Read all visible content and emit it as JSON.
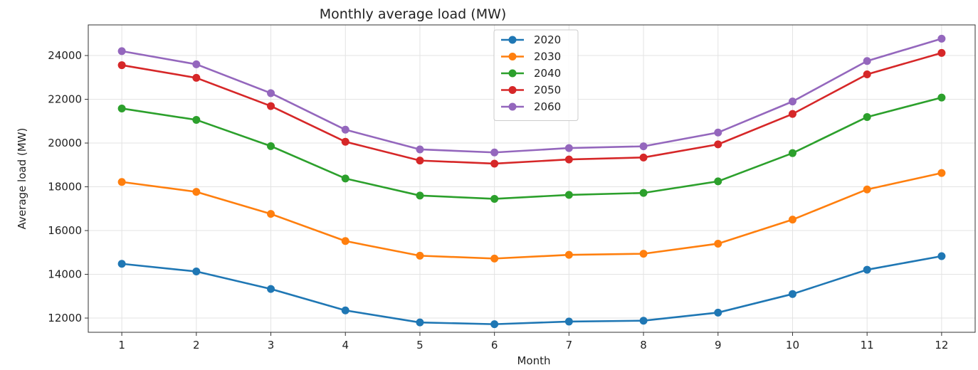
{
  "chart_data": {
    "type": "line",
    "title": "Monthly average load (MW)",
    "xlabel": "Month",
    "ylabel": "Average load (MW)",
    "x": [
      1,
      2,
      3,
      4,
      5,
      6,
      7,
      8,
      9,
      10,
      11,
      12
    ],
    "xticks": [
      "1",
      "2",
      "3",
      "4",
      "5",
      "6",
      "7",
      "8",
      "9",
      "10",
      "11",
      "12"
    ],
    "yticks": [
      12000,
      14000,
      16000,
      18000,
      20000,
      22000,
      24000
    ],
    "ytick_labels": [
      "12000",
      "14000",
      "16000",
      "18000",
      "20000",
      "22000",
      "24000"
    ],
    "xlim": [
      0.55,
      12.45
    ],
    "ylim": [
      11350,
      25400
    ],
    "grid": true,
    "legend_position": "top-center",
    "markers": true,
    "series": [
      {
        "name": "2020",
        "color": "#1f77b4",
        "values": [
          14480,
          14130,
          13330,
          12350,
          11800,
          11720,
          11840,
          11880,
          12250,
          13100,
          14210,
          14830
        ]
      },
      {
        "name": "2030",
        "color": "#ff7f0e",
        "values": [
          18220,
          17770,
          16760,
          15520,
          14850,
          14720,
          14890,
          14940,
          15400,
          16500,
          17880,
          18630
        ]
      },
      {
        "name": "2040",
        "color": "#2ca02c",
        "values": [
          21580,
          21060,
          19860,
          18380,
          17600,
          17450,
          17630,
          17720,
          18250,
          19540,
          21190,
          22080
        ]
      },
      {
        "name": "2050",
        "color": "#d62728",
        "values": [
          23560,
          22980,
          21690,
          20060,
          19200,
          19060,
          19250,
          19340,
          19940,
          21330,
          23140,
          24120
        ]
      },
      {
        "name": "2060",
        "color": "#9467bd",
        "values": [
          24200,
          23600,
          22280,
          20610,
          19710,
          19570,
          19770,
          19850,
          20480,
          21900,
          23750,
          24770
        ]
      }
    ]
  }
}
